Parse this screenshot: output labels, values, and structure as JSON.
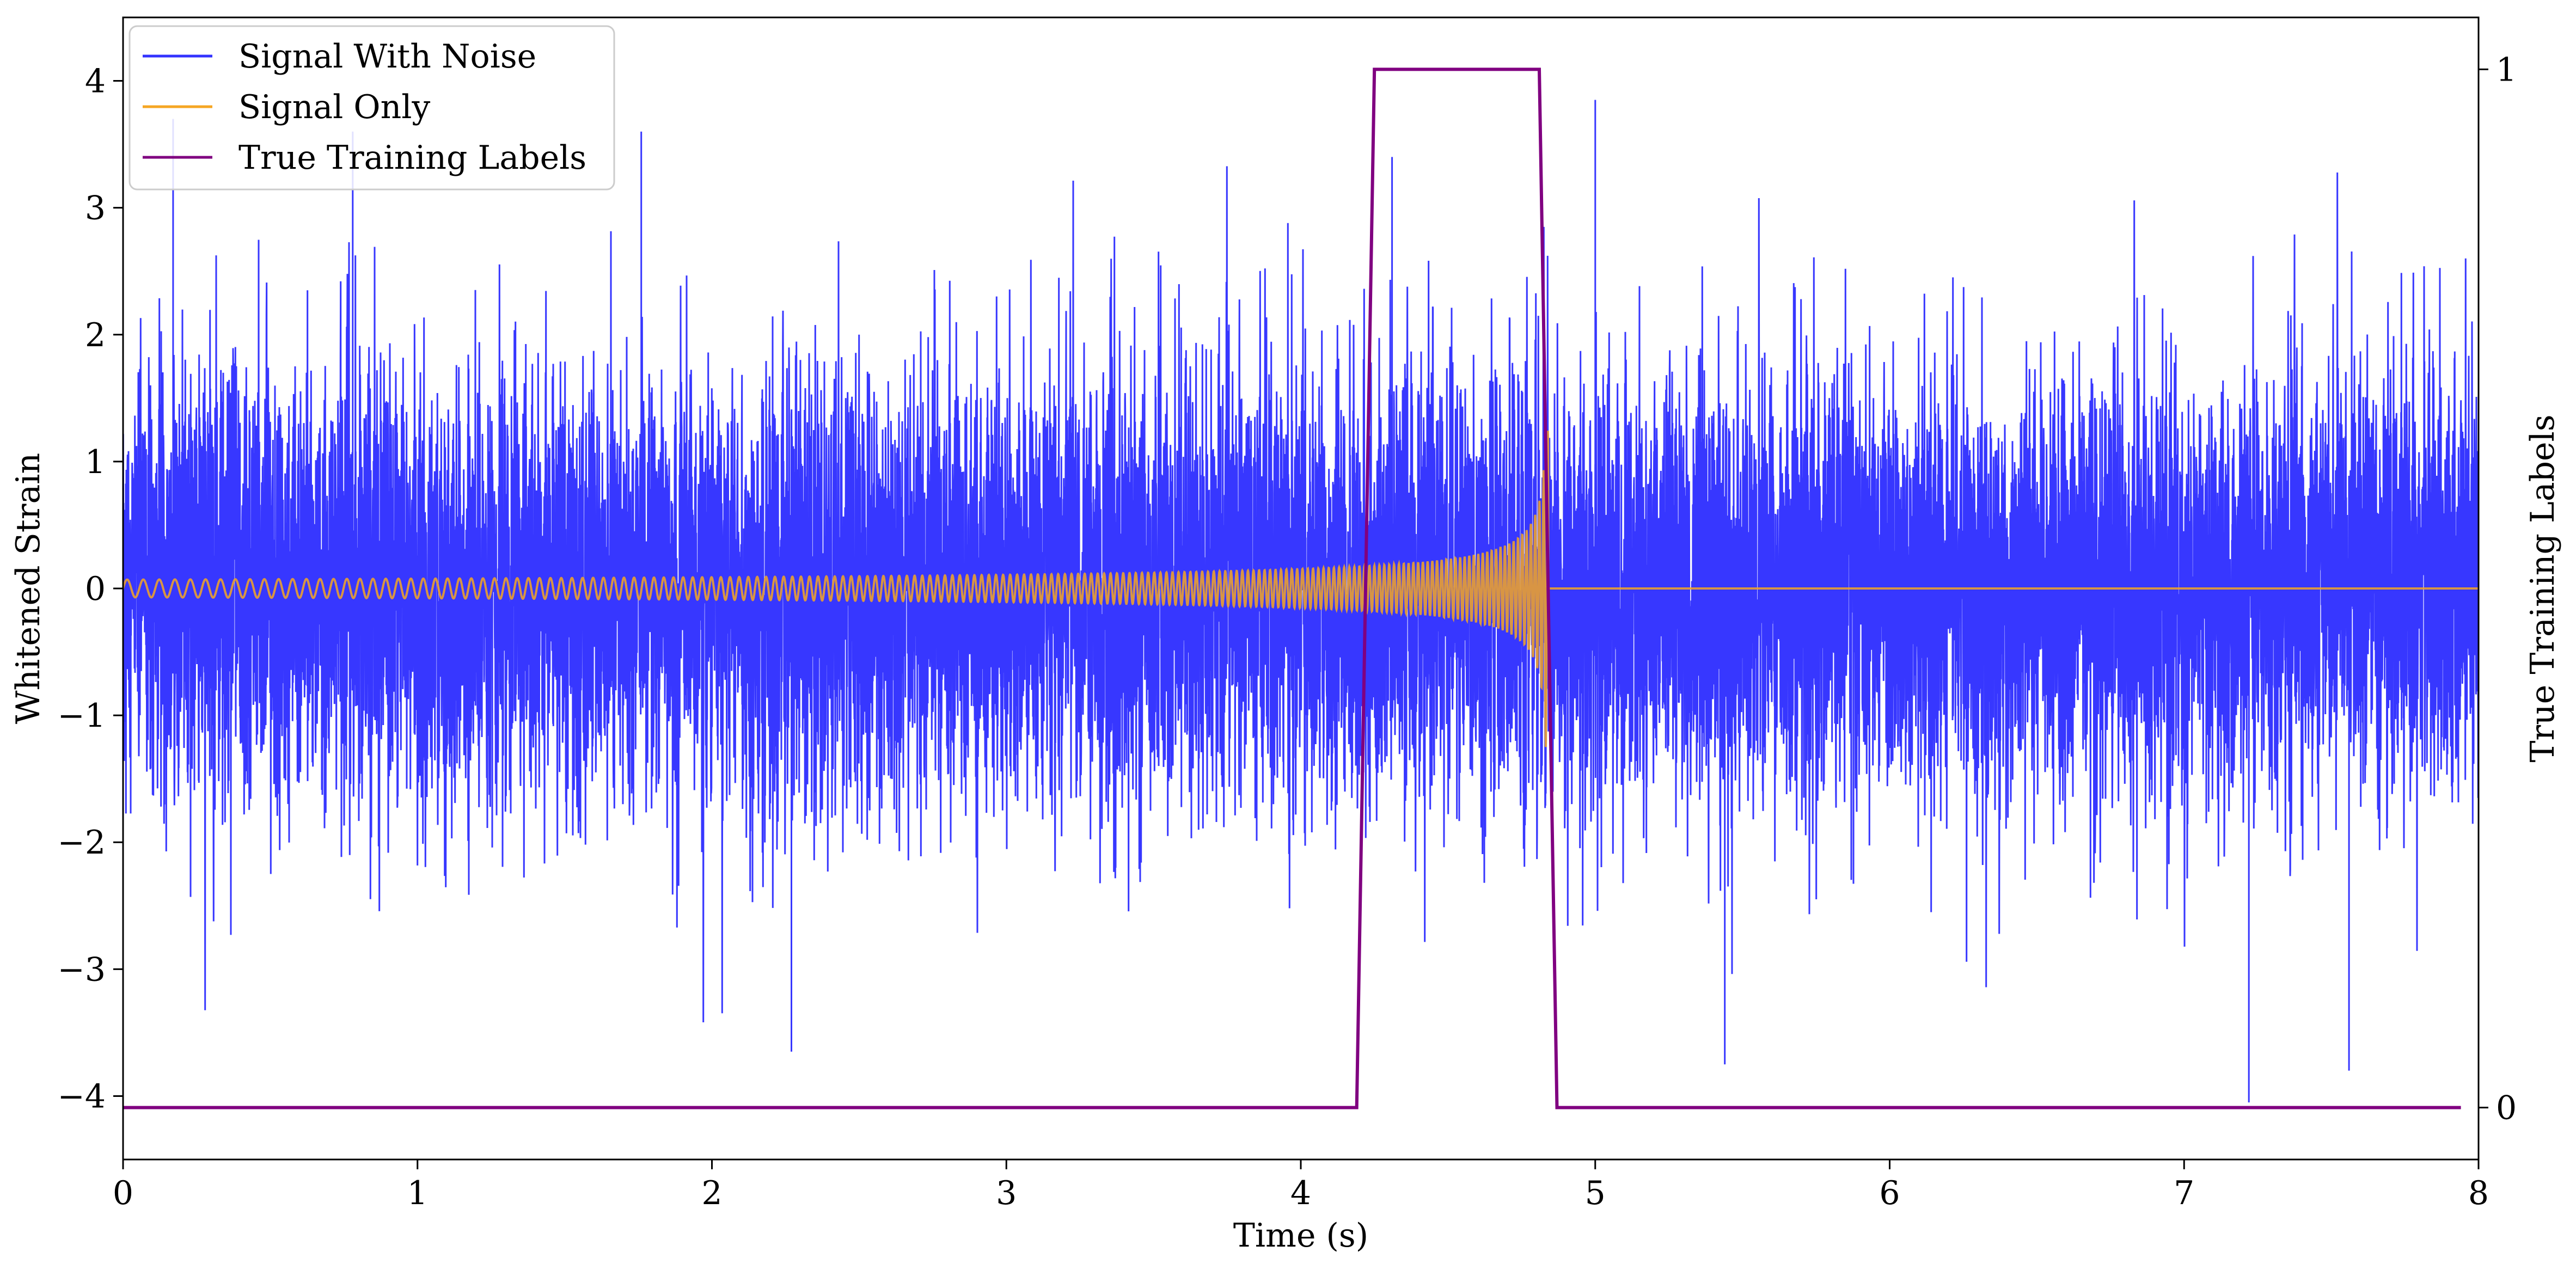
{
  "chart_data": {
    "type": "line",
    "title": "",
    "xlabel": "Time (s)",
    "ylabel": "Whitened Strain",
    "y2label": "True Training Labels",
    "xlim": [
      0,
      8
    ],
    "ylim": [
      -4.5,
      4.5
    ],
    "y2lim": [
      -0.05,
      1.05
    ],
    "x_ticks": [
      0,
      1,
      2,
      3,
      4,
      5,
      6,
      7,
      8
    ],
    "y_ticks": [
      -4,
      -3,
      -2,
      -1,
      0,
      1,
      2,
      3,
      4
    ],
    "y_tick_labels": [
      "−4",
      "−3",
      "−2",
      "−1",
      "0",
      "1",
      "2",
      "3",
      "4"
    ],
    "y2_ticks": [
      0,
      1
    ],
    "y2_tick_labels": [
      "0",
      "1"
    ],
    "grid": false,
    "legend_position": "top-left",
    "series": [
      {
        "name": "Signal With Noise",
        "color": "#3333ff",
        "axis": "left",
        "description": "noise",
        "noise_std": 0.85,
        "x_range": [
          0,
          8
        ]
      },
      {
        "name": "Signal Only",
        "color": "#f5a623",
        "axis": "left",
        "description": "chirp",
        "chirp": {
          "t_start": 0,
          "t_merge": 4.84,
          "amp_start": 0.07,
          "amp_peak": 1.25,
          "cycles_per_second_start": 18,
          "cycles_per_second_end": 70
        },
        "x_range": [
          0,
          8
        ]
      },
      {
        "name": "True Training Labels",
        "color": "#800080",
        "axis": "right",
        "x": [
          0,
          4.19,
          4.25,
          4.81,
          4.87,
          7.94
        ],
        "values": [
          0,
          0,
          1,
          1,
          0,
          0
        ]
      }
    ],
    "noise_extremes": [
      {
        "x": 0.17,
        "y": 3.7
      },
      {
        "x": 0.78,
        "y": 3.6
      },
      {
        "x": 1.76,
        "y": 3.6
      },
      {
        "x": 4.31,
        "y": 3.4
      },
      {
        "x": 5.0,
        "y": 3.85
      },
      {
        "x": 2.27,
        "y": -3.65
      },
      {
        "x": 5.44,
        "y": -3.75
      },
      {
        "x": 7.22,
        "y": -4.05
      },
      {
        "x": 7.56,
        "y": -3.8
      }
    ]
  }
}
